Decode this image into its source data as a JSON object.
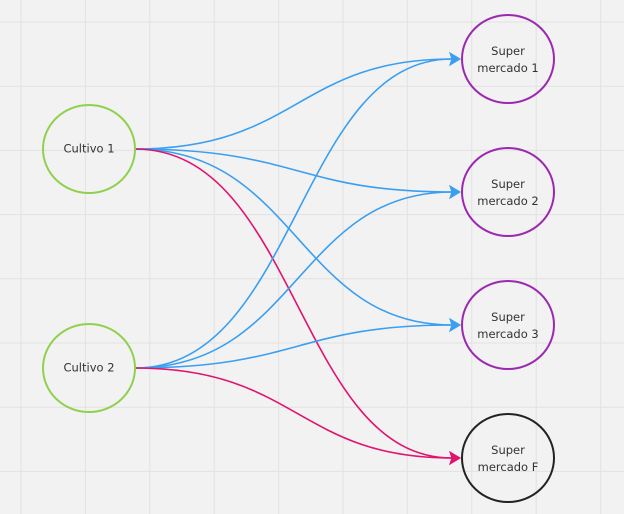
{
  "nodes": [
    {
      "id": "c1",
      "label": "Cultivo 1",
      "color": "#8fd14f"
    },
    {
      "id": "c2",
      "label": "Cultivo 2",
      "color": "#8fd14f"
    },
    {
      "id": "s1",
      "label_line1": "Super",
      "label_line2": "mercado 1",
      "color": "#9c27b0"
    },
    {
      "id": "s2",
      "label_line1": "Super",
      "label_line2": "mercado 2",
      "color": "#9c27b0"
    },
    {
      "id": "s3",
      "label_line1": "Super",
      "label_line2": "mercado 3",
      "color": "#9c27b0"
    },
    {
      "id": "sf",
      "label_line1": "Super",
      "label_line2": "mercado F",
      "color": "#222222"
    }
  ],
  "edges": [
    {
      "from": "c1",
      "to": "s1",
      "color": "#3a9ff0"
    },
    {
      "from": "c1",
      "to": "s2",
      "color": "#3a9ff0"
    },
    {
      "from": "c1",
      "to": "s3",
      "color": "#3a9ff0"
    },
    {
      "from": "c1",
      "to": "sf",
      "color": "#e0146e"
    },
    {
      "from": "c2",
      "to": "s1",
      "color": "#3a9ff0"
    },
    {
      "from": "c2",
      "to": "s2",
      "color": "#3a9ff0"
    },
    {
      "from": "c2",
      "to": "s3",
      "color": "#3a9ff0"
    },
    {
      "from": "c2",
      "to": "sf",
      "color": "#e0146e"
    }
  ]
}
